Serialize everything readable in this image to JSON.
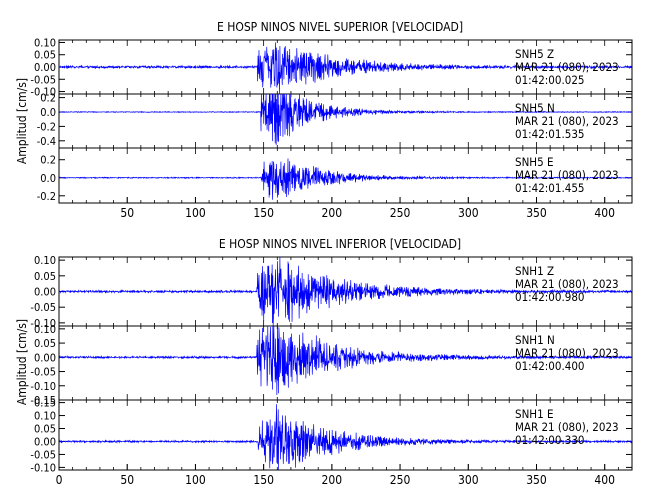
{
  "chart_data": [
    {
      "type": "line",
      "title": "E HOSP NINOS NIVEL SUPERIOR [VELOCIDAD]",
      "ylabel": "Amplitud [cm/s]",
      "xlabel": "",
      "xlim": [
        0,
        420
      ],
      "x_ticks": [
        "50",
        "100",
        "150",
        "200",
        "250",
        "300",
        "350",
        "400"
      ],
      "x_tick_values": [
        50,
        100,
        150,
        200,
        250,
        300,
        350,
        400
      ],
      "grid": false,
      "line_color": "#0000ff",
      "series": [
        {
          "name": "SNH5 Z",
          "station": "SNH5",
          "component": "Z",
          "date": "MAR 21 (080), 2023",
          "time": "01:42:00.025",
          "ylim": [
            -0.11,
            0.11
          ],
          "yticks": [
            "0.10",
            "0.05",
            "0.00",
            "-0.05",
            "-0.10"
          ],
          "ytick_values": [
            0.1,
            0.05,
            0.0,
            -0.05,
            -0.1
          ],
          "onset": 145,
          "peak": 0.105,
          "noise": 0.004,
          "decay": 40
        },
        {
          "name": "SNH5 N",
          "station": "SNH5",
          "component": "N",
          "date": "MAR 21 (080), 2023",
          "time": "01:42:01.535",
          "ylim": [
            -0.5,
            0.25
          ],
          "yticks": [
            "0.2",
            "0.0",
            "-0.2",
            "-0.4"
          ],
          "ytick_values": [
            0.2,
            0.0,
            -0.2,
            -0.4
          ],
          "onset": 148,
          "peak": 0.38,
          "noise": 0.005,
          "decay": 26
        },
        {
          "name": "SNH5 E",
          "station": "SNH5",
          "component": "E",
          "date": "MAR 21 (080), 2023",
          "time": "01:42:01.455",
          "ylim": [
            -0.28,
            0.33
          ],
          "yticks": [
            "0.2",
            "0.0",
            "-0.2"
          ],
          "ytick_values": [
            0.2,
            0.0,
            -0.2
          ],
          "onset": 148,
          "peak": 0.24,
          "noise": 0.005,
          "decay": 30
        }
      ]
    },
    {
      "type": "line",
      "title": "E HOSP NINOS NIVEL INFERIOR [VELOCIDAD]",
      "ylabel": "Amplitud [cm/s]",
      "xlabel": "",
      "xlim": [
        0,
        420
      ],
      "x_ticks": [
        "0",
        "50",
        "100",
        "150",
        "200",
        "250",
        "300",
        "350",
        "400"
      ],
      "x_tick_values": [
        0,
        50,
        100,
        150,
        200,
        250,
        300,
        350,
        400
      ],
      "grid": false,
      "line_color": "#0000ff",
      "series": [
        {
          "name": "SNH1 Z",
          "station": "SNH1",
          "component": "Z",
          "date": "MAR 21 (080), 2023",
          "time": "01:42:00.980",
          "ylim": [
            -0.11,
            0.11
          ],
          "yticks": [
            "0.10",
            "0.05",
            "0.00",
            "-0.05",
            "-0.10"
          ],
          "ytick_values": [
            0.1,
            0.05,
            0.0,
            -0.05,
            -0.1
          ],
          "onset": 145,
          "peak": 0.1,
          "noise": 0.003,
          "decay": 45
        },
        {
          "name": "SNH1 N",
          "station": "SNH1",
          "component": "N",
          "date": "MAR 21 (080), 2023",
          "time": "01:42:00.400",
          "ylim": [
            -0.15,
            0.11
          ],
          "yticks": [
            "0.10",
            "0.05",
            "0.00",
            "-0.05",
            "-0.10",
            "-0.15"
          ],
          "ytick_values": [
            0.1,
            0.05,
            0.0,
            -0.05,
            -0.1,
            -0.15
          ],
          "onset": 145,
          "peak": 0.12,
          "noise": 0.003,
          "decay": 42
        },
        {
          "name": "SNH1 E",
          "station": "SNH1",
          "component": "E",
          "date": "MAR 21 (080), 2023",
          "time": "01:42:00.330",
          "ylim": [
            -0.11,
            0.16
          ],
          "yticks": [
            "0.15",
            "0.10",
            "0.05",
            "0.00",
            "-0.05",
            "-0.10"
          ],
          "ytick_values": [
            0.15,
            0.1,
            0.05,
            0.0,
            -0.05,
            -0.1
          ],
          "onset": 146,
          "peak": 0.12,
          "noise": 0.003,
          "decay": 38
        }
      ]
    }
  ]
}
